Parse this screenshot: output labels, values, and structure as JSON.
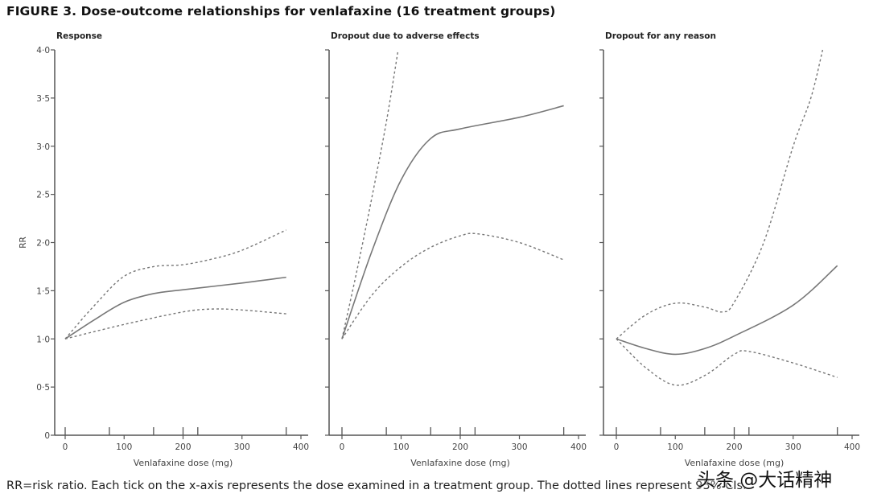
{
  "title": "FIGURE 3.  Dose-outcome relationships for venlafaxine (16 treatment groups)",
  "caption": "RR=risk ratio. Each tick on the x-axis represents the dose examined in a treatment group. The dotted lines represent 95% CIs.",
  "watermark": "头条 @大话精神",
  "chart_data": [
    {
      "type": "line",
      "title": "Response",
      "xlabel": "Venlafaxine dose (mg)",
      "ylabel": "RR",
      "xlim": [
        0,
        400
      ],
      "ylim": [
        0,
        4.0
      ],
      "x_ticks": [
        "0",
        "100",
        "200",
        "300",
        "400"
      ],
      "y_ticks": [
        "0",
        "0·5",
        "1·0",
        "1·5",
        "2·0",
        "2·5",
        "3·0",
        "3·5",
        "4·0"
      ],
      "treatment_group_doses": [
        0,
        75,
        150,
        200,
        225,
        375
      ],
      "series": [
        {
          "style": "solid",
          "x": [
            0,
            50,
            100,
            150,
            200,
            300,
            375
          ],
          "y": [
            1.0,
            1.2,
            1.38,
            1.47,
            1.51,
            1.58,
            1.64
          ]
        },
        {
          "style": "dotted",
          "x": [
            0,
            50,
            100,
            150,
            200,
            250,
            300,
            375
          ],
          "y": [
            1.0,
            1.35,
            1.65,
            1.75,
            1.77,
            1.83,
            1.92,
            2.13
          ]
        },
        {
          "style": "dotted",
          "x": [
            0,
            100,
            200,
            250,
            300,
            375
          ],
          "y": [
            1.0,
            1.15,
            1.28,
            1.31,
            1.3,
            1.26
          ]
        }
      ]
    },
    {
      "type": "line",
      "title": "Dropout due to adverse effects",
      "xlabel": "Venlafaxine dose (mg)",
      "xlim": [
        0,
        400
      ],
      "ylim": [
        0,
        4.0
      ],
      "x_ticks": [
        "0",
        "100",
        "200",
        "300",
        "400"
      ],
      "treatment_group_doses": [
        0,
        75,
        150,
        200,
        225,
        375
      ],
      "series": [
        {
          "style": "solid",
          "x": [
            0,
            50,
            100,
            150,
            200,
            300,
            375
          ],
          "y": [
            1.0,
            1.9,
            2.65,
            3.08,
            3.18,
            3.3,
            3.42
          ]
        },
        {
          "style": "dotted",
          "x": [
            0,
            25,
            50,
            75,
            95
          ],
          "y": [
            1.0,
            1.7,
            2.45,
            3.25,
            4.0
          ]
        },
        {
          "style": "dotted",
          "x": [
            0,
            50,
            100,
            150,
            200,
            230,
            300,
            375
          ],
          "y": [
            1.0,
            1.45,
            1.75,
            1.95,
            2.07,
            2.09,
            2.0,
            1.82
          ]
        }
      ]
    },
    {
      "type": "line",
      "title": "Dropout for any reason",
      "xlabel": "Venlafaxine dose (mg)",
      "xlim": [
        0,
        400
      ],
      "ylim": [
        0,
        4.0
      ],
      "x_ticks": [
        "0",
        "100",
        "200",
        "300",
        "400"
      ],
      "treatment_group_doses": [
        0,
        75,
        150,
        200,
        225,
        375
      ],
      "series": [
        {
          "style": "solid",
          "x": [
            0,
            50,
            100,
            150,
            200,
            300,
            375
          ],
          "y": [
            1.0,
            0.9,
            0.84,
            0.9,
            1.03,
            1.35,
            1.76
          ]
        },
        {
          "style": "dotted",
          "x": [
            0,
            50,
            100,
            150,
            180,
            200,
            250,
            300,
            330,
            350
          ],
          "y": [
            1.0,
            1.25,
            1.37,
            1.33,
            1.28,
            1.38,
            2.0,
            3.0,
            3.5,
            4.0
          ]
        },
        {
          "style": "dotted",
          "x": [
            0,
            50,
            100,
            150,
            200,
            225,
            300,
            375
          ],
          "y": [
            1.0,
            0.7,
            0.52,
            0.62,
            0.84,
            0.87,
            0.75,
            0.6
          ]
        }
      ]
    }
  ],
  "colors": {
    "line": "#777777",
    "axis": "#555555",
    "text": "#111111"
  }
}
